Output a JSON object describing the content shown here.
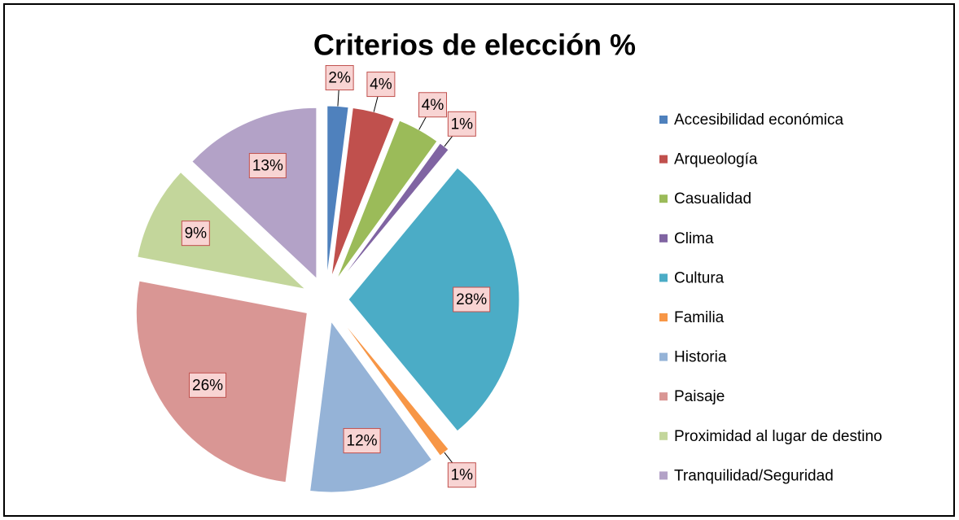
{
  "chart_data": {
    "type": "pie",
    "title": "Criterios de elección %",
    "categories": [
      "Accesibilidad económica",
      "Arqueología",
      "Casualidad",
      "Clima",
      "Cultura",
      "Familia",
      "Historia",
      "Paisaje",
      "Proximidad al lugar de destino",
      "Tranquilidad/Seguridad"
    ],
    "values": [
      2,
      4,
      4,
      1,
      28,
      1,
      12,
      26,
      9,
      13
    ],
    "value_labels": [
      "2%",
      "4%",
      "4%",
      "1%",
      "28%",
      "1%",
      "12%",
      "26%",
      "9%",
      "13%"
    ],
    "colors": [
      "#4f81bd",
      "#c0504d",
      "#9bbb59",
      "#8064a2",
      "#4bacc6",
      "#f79646",
      "#95b3d7",
      "#d99694",
      "#c3d69b",
      "#b3a2c7"
    ],
    "legend": "right"
  }
}
